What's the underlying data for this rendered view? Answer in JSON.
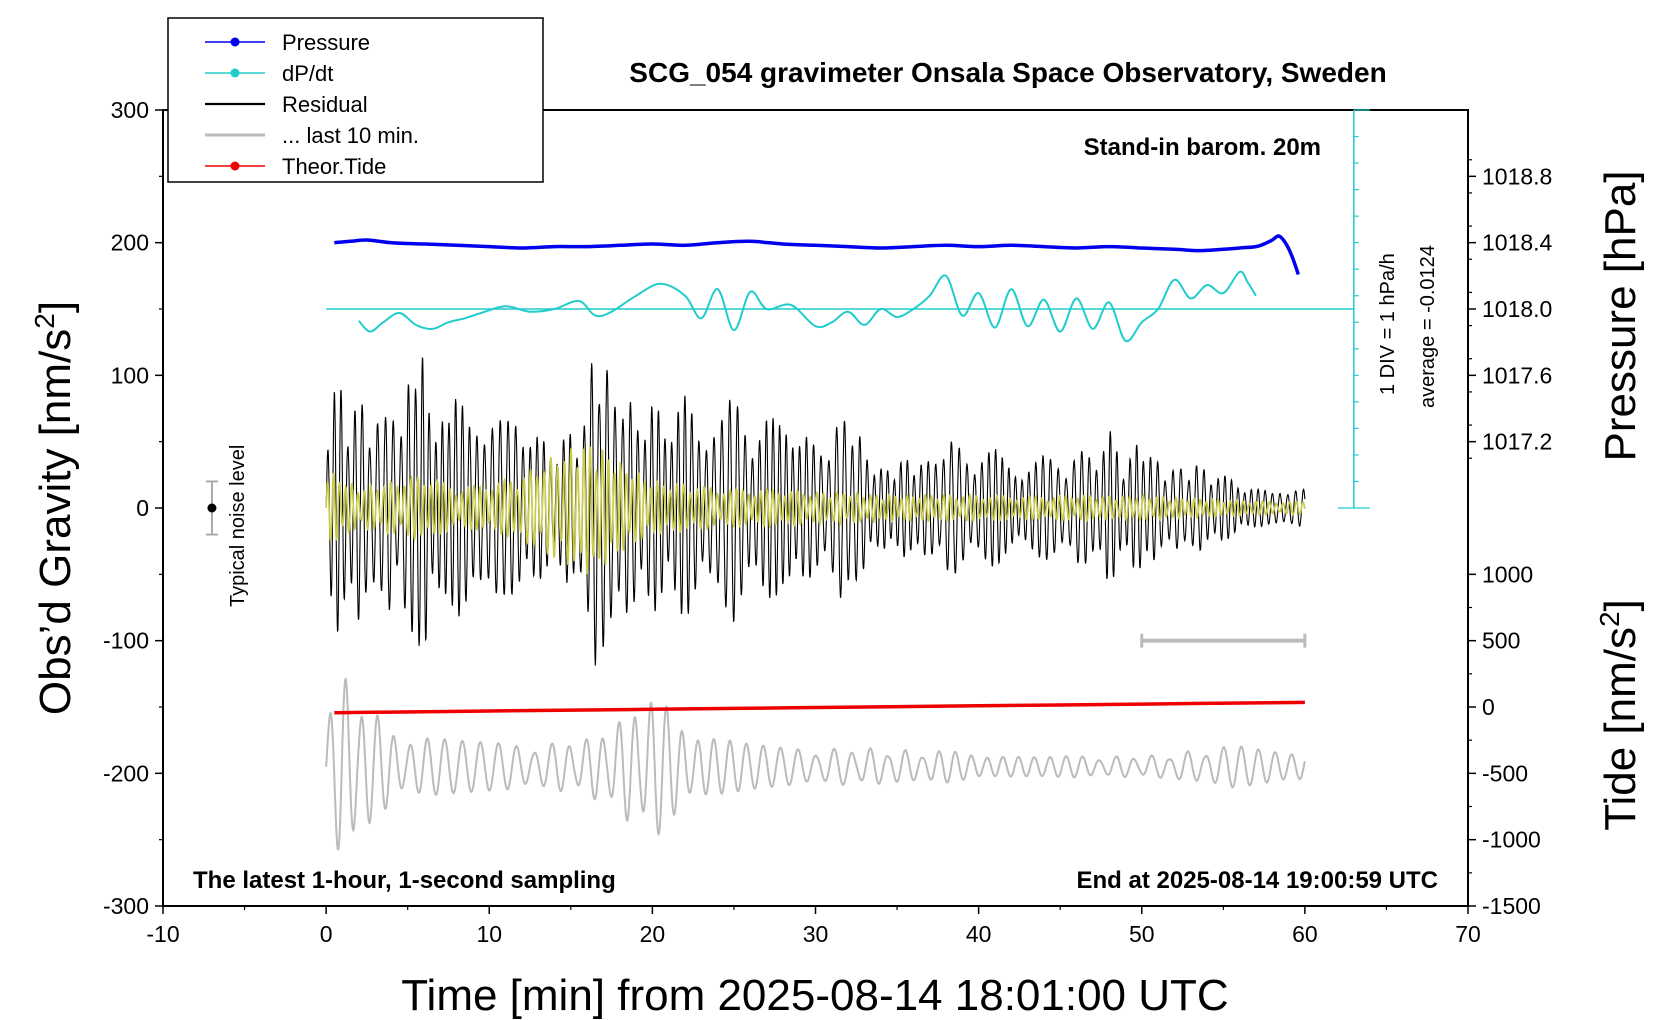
{
  "chart_data": {
    "type": "line",
    "title": "SCG_054 gravimeter Onsala Space Observatory, Sweden",
    "xlabel": "Time [min] from 2025-08-14 18:01:00 UTC",
    "ylabel_main": "Obs’d Gravity [nm/s",
    "ylabel_pressure": "Pressure [hPa]",
    "ylabel_tide": "Tide [nm/s",
    "unit_sup": "2",
    "unit_close": "]",
    "xlim": [
      -10,
      70
    ],
    "ylim": [
      -300,
      300
    ],
    "x_ticks": [
      "-10",
      "0",
      "10",
      "20",
      "30",
      "40",
      "50",
      "60",
      "70"
    ],
    "y_ticks": [
      "300",
      "200",
      "100",
      "0",
      "-100",
      "-200",
      "-300"
    ],
    "pressure_ticks": [
      {
        "label": "1018.8",
        "gravity": 250
      },
      {
        "label": "1018.4",
        "gravity": 200
      },
      {
        "label": "1018.0",
        "gravity": 150
      },
      {
        "label": "1017.6",
        "gravity": 100
      },
      {
        "label": "1017.2",
        "gravity": 50
      }
    ],
    "tide_ticks": [
      {
        "label": "1000",
        "gravity": -50
      },
      {
        "label": "500",
        "gravity": -100
      },
      {
        "label": "0",
        "gravity": -150
      },
      {
        "label": "-500",
        "gravity": -200
      },
      {
        "label": "-1000",
        "gravity": -250
      },
      {
        "label": "-1500",
        "gravity": -300
      }
    ],
    "legend": [
      {
        "label": "Pressure",
        "color": "#0000ee",
        "marker": true
      },
      {
        "label": "dP/dt",
        "color": "#22cccc",
        "marker": true
      },
      {
        "label": "Residual",
        "color": "#000000",
        "marker": false
      },
      {
        "label": "... last 10 min.",
        "color": "#bbbbbb",
        "marker": false
      },
      {
        "label": "Theor.Tide",
        "color": "#ee0000",
        "marker": true
      }
    ],
    "annotations": {
      "stand_in": "Stand-in barom. 20m",
      "latest": "The latest 1-hour, 1-second sampling",
      "end_at": "End at 2025-08-14 19:00:59 UTC",
      "div_scale": "1 DIV = 1 hPa/h",
      "average": "average = -0.0124",
      "noise": "Typical noise level"
    },
    "noise_bar": {
      "x": -7,
      "center": 0,
      "half_range": 20
    },
    "scale_bar": {
      "x_start": 50,
      "x_end": 60,
      "y": -100
    },
    "dpdt_axis": {
      "x": 63,
      "y_from": 0,
      "y_to": 300,
      "zero_line": 150,
      "div_count": 15
    },
    "series": [
      {
        "name": "Pressure",
        "color": "#0000ee",
        "x": [
          0.5,
          1.5,
          2.5,
          4,
          6,
          8,
          10,
          12,
          14,
          16,
          18,
          20,
          22,
          24,
          26,
          28,
          30,
          32,
          34,
          36,
          38,
          40,
          42,
          44,
          46,
          48,
          50,
          52,
          53.5,
          55,
          56,
          57,
          57.5,
          58,
          58.4,
          58.8,
          59.2,
          59.6
        ],
        "y": [
          200,
          201,
          202,
          200,
          199,
          198,
          197,
          196,
          197,
          197,
          198,
          199,
          198,
          200,
          201,
          199,
          198,
          197,
          196,
          197,
          198,
          197,
          198,
          197,
          196,
          197,
          196,
          195,
          194,
          195,
          196,
          197,
          199,
          202,
          205,
          200,
          190,
          176
        ]
      },
      {
        "name": "dP/dt",
        "color": "#22cccc",
        "x": [
          2,
          2.7,
          3.5,
          4.5,
          5.5,
          6.5,
          7.5,
          8.5,
          9.5,
          11,
          12.5,
          14,
          15.5,
          16.5,
          17.5,
          19,
          20.5,
          22,
          23,
          24,
          25,
          26,
          27,
          28.5,
          30,
          31,
          32,
          33,
          34,
          35,
          36,
          37,
          38,
          39,
          40,
          41,
          42,
          43,
          44,
          45,
          46,
          47,
          48,
          49,
          50,
          51,
          52,
          53,
          54,
          55,
          56,
          56.5,
          57
        ],
        "y": [
          141,
          133,
          140,
          147,
          138,
          135,
          140,
          143,
          147,
          152,
          148,
          150,
          156,
          145,
          148,
          160,
          169,
          160,
          143,
          165,
          134,
          163,
          150,
          153,
          137,
          140,
          148,
          138,
          150,
          144,
          150,
          160,
          175,
          145,
          162,
          136,
          165,
          137,
          157,
          133,
          158,
          135,
          155,
          126,
          140,
          150,
          172,
          158,
          168,
          162,
          178,
          170,
          160
        ]
      },
      {
        "name": "Residual",
        "color": "#000000",
        "x": [
          0,
          0.5,
          1,
          1.5,
          2,
          2.5,
          3,
          3.5,
          4,
          4.5,
          5,
          5.5,
          6,
          6.5,
          7,
          7.5,
          8,
          8.5,
          9,
          9.5,
          10,
          11,
          12,
          13,
          14,
          15,
          16,
          16.5,
          17,
          17.5,
          18,
          19,
          20,
          21,
          22,
          23,
          24,
          25,
          26,
          27,
          28,
          29,
          30,
          31,
          32,
          33,
          34,
          35,
          36,
          37,
          38,
          39,
          40,
          41,
          42,
          43,
          44,
          45,
          46,
          47,
          48,
          49,
          50,
          51,
          52,
          53,
          54,
          55,
          56,
          57,
          58,
          59,
          60
        ],
        "amp": [
          60,
          90,
          100,
          70,
          85,
          80,
          75,
          60,
          95,
          70,
          100,
          90,
          135,
          80,
          90,
          70,
          85,
          75,
          60,
          80,
          85,
          65,
          70,
          55,
          45,
          60,
          70,
          150,
          130,
          80,
          100,
          70,
          80,
          70,
          85,
          70,
          60,
          90,
          65,
          75,
          60,
          70,
          45,
          55,
          80,
          45,
          30,
          35,
          40,
          35,
          55,
          45,
          40,
          45,
          35,
          35,
          40,
          35,
          45,
          40,
          60,
          35,
          55,
          35,
          30,
          35,
          30,
          25,
          20,
          15,
          12,
          18,
          15
        ]
      },
      {
        "name": "Yellow overlay",
        "color": "#c9c94a",
        "x": [
          0,
          2,
          4,
          6,
          8,
          10,
          12,
          14,
          15,
          16,
          17,
          18,
          20,
          22,
          24,
          26,
          28,
          30,
          32,
          34,
          36,
          38,
          40,
          42,
          44,
          46,
          48,
          50,
          52,
          54,
          56,
          58,
          60
        ],
        "amp": [
          30,
          15,
          20,
          25,
          15,
          18,
          25,
          40,
          45,
          50,
          45,
          35,
          20,
          18,
          15,
          14,
          14,
          12,
          12,
          10,
          10,
          10,
          10,
          9,
          9,
          10,
          9,
          10,
          8,
          7,
          6,
          5,
          5
        ]
      },
      {
        "name": "... last 10 min.",
        "color": "#bbbbbb",
        "x": [
          0,
          1,
          2,
          3,
          4,
          5,
          6,
          7,
          8,
          10,
          12,
          14,
          16,
          18,
          19,
          20,
          21,
          22,
          23,
          24,
          26,
          28,
          30,
          32,
          34,
          36,
          38,
          40,
          42,
          44,
          46,
          48,
          50,
          52,
          54,
          56,
          58,
          60
        ],
        "amp": [
          50,
          70,
          60,
          40,
          30,
          25,
          25,
          22,
          20,
          18,
          18,
          18,
          22,
          35,
          50,
          55,
          45,
          35,
          30,
          25,
          18,
          14,
          14,
          14,
          14,
          12,
          12,
          12,
          10,
          8,
          8,
          8,
          8,
          10,
          14,
          16,
          18,
          15
        ]
      },
      {
        "name": "Theor.Tide",
        "color": "#ee0000",
        "x": [
          0.5,
          10,
          20,
          30,
          40,
          50,
          60
        ],
        "y": [
          -154.3,
          -153,
          -151.7,
          -150.4,
          -149.1,
          -147.8,
          -146.5
        ]
      }
    ]
  }
}
